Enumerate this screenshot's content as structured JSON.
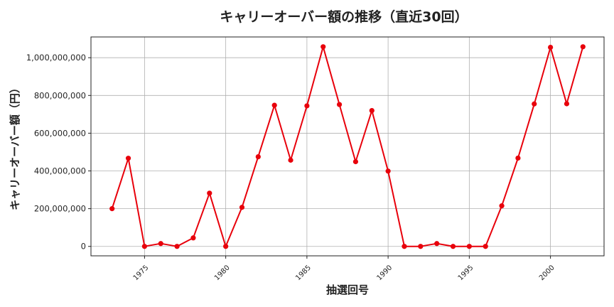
{
  "chart_data": {
    "type": "line",
    "title": "キャリーオーバー額の推移（直近30回）",
    "xlabel": "抽選回号",
    "ylabel": "キャリーオーバー額（円）",
    "xlim": [
      1971.7,
      2003.3
    ],
    "ylim": [
      -50000000,
      1110000000
    ],
    "x_ticks": [
      1975,
      1980,
      1985,
      1990,
      1995,
      2000
    ],
    "y_ticks": [
      0,
      200000000,
      400000000,
      600000000,
      800000000,
      1000000000
    ],
    "y_tick_labels": [
      "0",
      "200,000,000",
      "400,000,000",
      "600,000,000",
      "800,000,000",
      "1,000,000,000"
    ],
    "grid": true,
    "series": [
      {
        "color": "#e8000b",
        "x": [
          1973,
          1974,
          1975,
          1976,
          1977,
          1978,
          1979,
          1980,
          1981,
          1982,
          1983,
          1984,
          1985,
          1986,
          1987,
          1988,
          1989,
          1990,
          1991,
          1992,
          1993,
          1994,
          1995,
          1996,
          1997,
          1998,
          1999,
          2000,
          2001,
          2002
        ],
        "values": [
          200000000,
          467000000,
          0,
          15000000,
          0,
          45000000,
          282000000,
          0,
          207000000,
          475000000,
          748000000,
          457000000,
          745000000,
          1058000000,
          752000000,
          449000000,
          720000000,
          399000000,
          0,
          0,
          15000000,
          0,
          0,
          0,
          215000000,
          468000000,
          755000000,
          1055000000,
          756000000,
          1058000000
        ]
      }
    ]
  }
}
